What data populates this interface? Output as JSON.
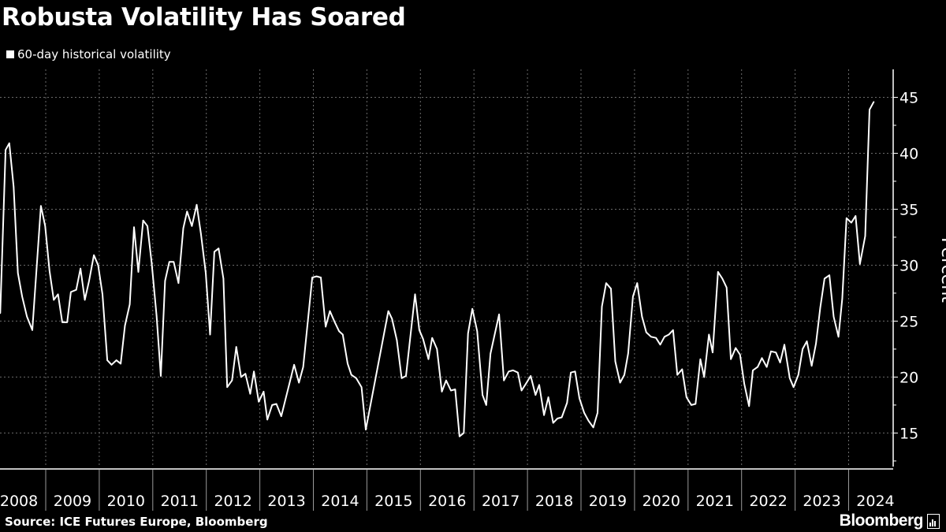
{
  "title": "Robusta Volatility Has Soared",
  "source": "Source: ICE Futures Europe, Bloomberg",
  "logo": "Bloomberg",
  "colors": {
    "background": "#000000",
    "line": "#ffffff",
    "grid": "#6b6b6b"
  },
  "chart_data": {
    "type": "line",
    "title": "Robusta Volatility Has Soared",
    "ylabel": "Percent",
    "xlabel": "",
    "legend": {
      "position": "top-left",
      "entries": [
        "60-day historical volatility"
      ]
    },
    "grid": true,
    "y_axis_side": "right",
    "ylim": [
      12,
      47.5
    ],
    "xlim": [
      2008,
      2024.7
    ],
    "y_ticks": [
      15,
      20,
      25,
      30,
      35,
      40,
      45
    ],
    "x_tick_labels": [
      "2008",
      "2009",
      "2010",
      "2011",
      "2012",
      "2013",
      "2014",
      "2015",
      "2016",
      "2017",
      "2018",
      "2019",
      "2020",
      "2021",
      "2022",
      "2023",
      "2024"
    ],
    "series": [
      {
        "name": "60-day historical volatility",
        "x": [
          2008.15,
          2008.25,
          2008.32,
          2008.4,
          2008.48,
          2008.56,
          2008.65,
          2008.75,
          2008.91,
          2008.99,
          2009.07,
          2009.15,
          2009.23,
          2009.31,
          2009.4,
          2009.47,
          2009.57,
          2009.65,
          2009.73,
          2009.81,
          2009.9,
          2009.98,
          2010.06,
          2010.15,
          2010.23,
          2010.32,
          2010.4,
          2010.48,
          2010.57,
          2010.65,
          2010.73,
          2010.82,
          2010.9,
          2010.98,
          2011.07,
          2011.15,
          2011.23,
          2011.31,
          2011.39,
          2011.48,
          2011.57,
          2011.64,
          2011.73,
          2011.82,
          2011.9,
          2011.99,
          2012.07,
          2012.15,
          2012.23,
          2012.32,
          2012.39,
          2012.48,
          2012.56,
          2012.65,
          2012.73,
          2012.82,
          2012.89,
          2012.98,
          2013.07,
          2013.14,
          2013.23,
          2013.31,
          2013.4,
          2013.64,
          2013.73,
          2013.81,
          2013.98,
          2014.06,
          2014.14,
          2014.23,
          2014.31,
          2014.39,
          2014.48,
          2014.55,
          2014.64,
          2014.71,
          2014.8,
          2014.9,
          2014.98,
          2015.4,
          2015.47,
          2015.56,
          2015.65,
          2015.73,
          2015.9,
          2015.98,
          2016.05,
          2016.15,
          2016.22,
          2016.31,
          2016.4,
          2016.48,
          2016.57,
          2016.65,
          2016.73,
          2016.81,
          2016.89,
          2016.97,
          2017.06,
          2017.16,
          2017.23,
          2017.31,
          2017.47,
          2017.56,
          2017.65,
          2017.73,
          2017.82,
          2017.89,
          2017.97,
          2018.06,
          2018.15,
          2018.22,
          2018.31,
          2018.39,
          2018.48,
          2018.56,
          2018.64,
          2018.74,
          2018.81,
          2018.89,
          2018.97,
          2019.06,
          2019.14,
          2019.23,
          2019.31,
          2019.39,
          2019.47,
          2019.56,
          2019.64,
          2019.73,
          2019.81,
          2019.88,
          2019.97,
          2020.05,
          2020.14,
          2020.22,
          2020.31,
          2020.4,
          2020.48,
          2020.56,
          2020.64,
          2020.72,
          2020.8,
          2020.89,
          2020.97,
          2021.06,
          2021.14,
          2021.23,
          2021.3,
          2021.39,
          2021.46,
          2021.56,
          2021.64,
          2021.72,
          2021.8,
          2021.89,
          2021.97,
          2022.05,
          2022.14,
          2022.21,
          2022.3,
          2022.38,
          2022.47,
          2022.55,
          2022.64,
          2022.72,
          2022.8,
          2022.9,
          2022.97,
          2023.06,
          2023.14,
          2023.22,
          2023.31,
          2023.39,
          2023.47,
          2023.55,
          2023.64,
          2023.72,
          2023.81,
          2023.88,
          2023.96,
          2024.05,
          2024.13,
          2024.21,
          2024.31,
          2024.39,
          2024.47
        ],
        "values": [
          25.7,
          40.3,
          40.9,
          37.0,
          29.3,
          27.2,
          25.4,
          24.2,
          35.3,
          33.5,
          29.5,
          26.9,
          27.4,
          24.9,
          24.9,
          27.6,
          27.8,
          29.7,
          26.9,
          28.6,
          30.9,
          30.0,
          27.4,
          21.5,
          21.1,
          21.5,
          21.2,
          24.6,
          26.5,
          33.4,
          29.4,
          34.0,
          33.5,
          30.2,
          25.5,
          20.1,
          28.6,
          30.3,
          30.3,
          28.4,
          33.3,
          34.8,
          33.5,
          35.4,
          32.8,
          29.3,
          23.8,
          31.2,
          31.5,
          28.8,
          19.1,
          19.7,
          22.7,
          20.0,
          20.3,
          18.5,
          20.5,
          17.8,
          18.7,
          16.2,
          17.5,
          17.6,
          16.5,
          21.1,
          19.5,
          20.9,
          28.9,
          29.0,
          28.9,
          24.5,
          25.9,
          25.0,
          24.1,
          23.8,
          21.2,
          20.2,
          19.9,
          19.1,
          15.3,
          25.9,
          25.2,
          23.3,
          19.9,
          20.1,
          27.4,
          24.2,
          23.4,
          21.6,
          23.5,
          22.5,
          18.7,
          19.7,
          18.8,
          18.9,
          14.7,
          15.0,
          23.9,
          26.1,
          24.1,
          18.4,
          17.5,
          22.1,
          25.6,
          19.7,
          20.5,
          20.6,
          20.4,
          18.8,
          19.4,
          20.1,
          18.4,
          19.3,
          16.6,
          18.2,
          15.9,
          16.3,
          16.4,
          17.7,
          20.4,
          20.5,
          18.1,
          16.8,
          16.1,
          15.5,
          16.8,
          26.3,
          28.4,
          27.9,
          21.4,
          19.5,
          20.2,
          22.1,
          27.2,
          28.4,
          25.4,
          24.0,
          23.6,
          23.5,
          22.9,
          23.6,
          23.8,
          24.2,
          20.2,
          20.7,
          18.2,
          17.5,
          17.6,
          21.6,
          20.0,
          23.8,
          22.2,
          29.4,
          28.8,
          28.0,
          21.6,
          22.6,
          22.0,
          19.4,
          17.4,
          20.6,
          20.9,
          21.7,
          20.9,
          22.3,
          22.2,
          21.3,
          22.9,
          19.9,
          19.1,
          20.2,
          22.5,
          23.2,
          21.0,
          23.0,
          26.2,
          28.8,
          29.1,
          25.4,
          23.6,
          27.0,
          34.2,
          33.8,
          34.4,
          30.1,
          32.6,
          43.9,
          44.6
        ]
      }
    ]
  }
}
